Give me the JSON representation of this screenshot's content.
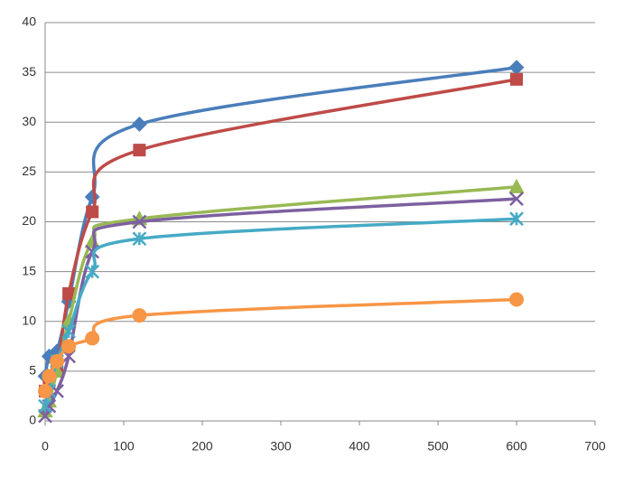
{
  "chart_data": {
    "type": "line",
    "smooth": true,
    "grid": true,
    "x": [
      0,
      5,
      15,
      30,
      60,
      120,
      600
    ],
    "series": [
      {
        "color": "#4a7ebb",
        "marker": "diamond",
        "values": [
          4.5,
          6.5,
          7,
          12,
          22.5,
          29.8,
          35.5
        ]
      },
      {
        "color": "#be4b48",
        "marker": "square",
        "values": [
          3,
          4,
          5,
          12.8,
          21,
          27.2,
          34.3
        ]
      },
      {
        "color": "#98b954",
        "marker": "triangle",
        "values": [
          1,
          2,
          5,
          10,
          18,
          20.3,
          23.5
        ]
      },
      {
        "color": "#7d60a0",
        "marker": "x",
        "values": [
          0.5,
          1.5,
          3,
          6.5,
          17,
          20,
          22.3
        ]
      },
      {
        "color": "#46aac5",
        "marker": "star",
        "values": [
          1.5,
          3,
          6,
          9,
          15,
          18.3,
          20.3
        ]
      },
      {
        "color": "#f79646",
        "marker": "circle",
        "values": [
          3,
          4.5,
          6,
          7.5,
          8.3,
          10.6,
          12.2
        ]
      }
    ],
    "xlim": [
      0,
      700
    ],
    "xticks": [
      0,
      100,
      200,
      300,
      400,
      500,
      600,
      700
    ],
    "ylim": [
      0,
      40
    ],
    "yticks": [
      0,
      5,
      10,
      15,
      20,
      25,
      30,
      35,
      40
    ]
  }
}
